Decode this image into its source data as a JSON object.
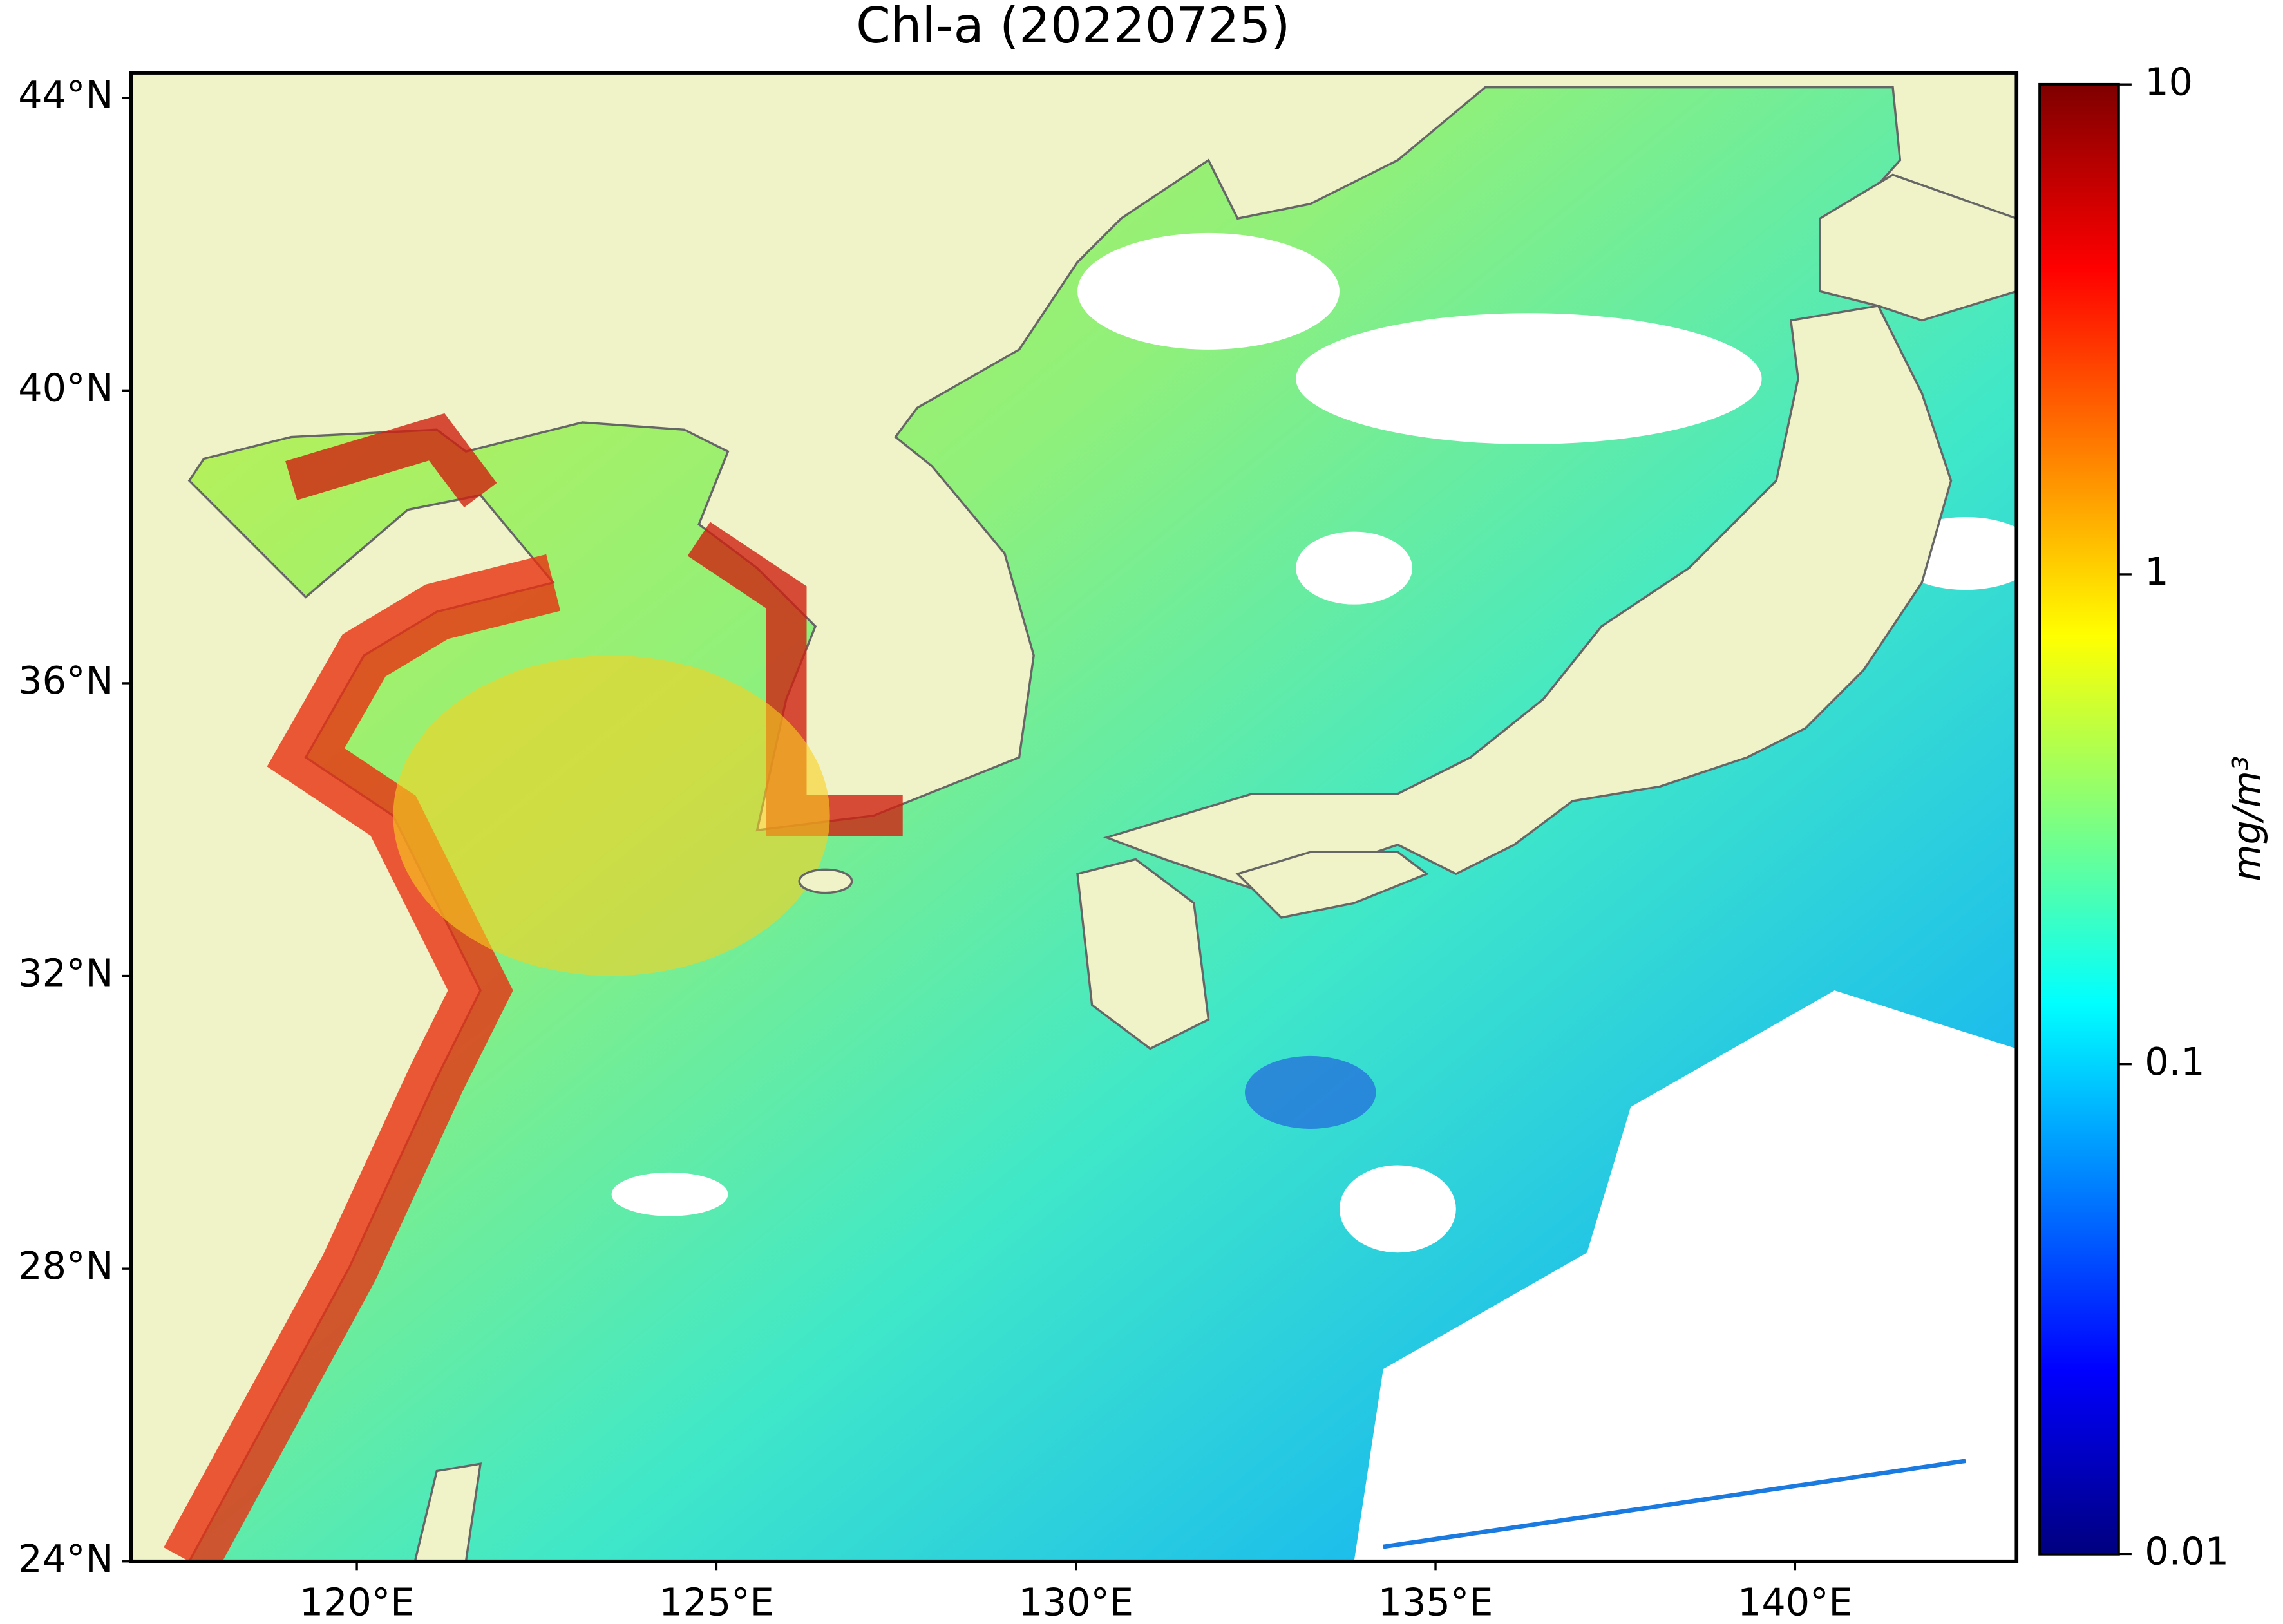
{
  "chart_data": {
    "type": "map",
    "title": "Chl-a (20220725)",
    "xlim": [
      116.86,
      143.08
    ],
    "ylim": [
      24,
      44.34
    ],
    "xticks": [
      {
        "value": 120,
        "label": "120°E"
      },
      {
        "value": 125,
        "label": "125°E"
      },
      {
        "value": 130,
        "label": "130°E"
      },
      {
        "value": 135,
        "label": "135°E"
      },
      {
        "value": 140,
        "label": "140°E"
      }
    ],
    "yticks": [
      {
        "value": 24,
        "label": "24°N"
      },
      {
        "value": 28,
        "label": "28°N"
      },
      {
        "value": 32,
        "label": "32°N"
      },
      {
        "value": 36,
        "label": "36°N"
      },
      {
        "value": 40,
        "label": "40°N"
      },
      {
        "value": 44,
        "label": "44°N"
      }
    ],
    "colorbar": {
      "label": "mg/m³",
      "scale": "log",
      "lim": [
        0.01,
        10
      ],
      "ticks": [
        0.01,
        0.1,
        1,
        10
      ],
      "colors": [
        "#00007f",
        "#0000ff",
        "#007fff",
        "#00ffff",
        "#7fff7f",
        "#ffff00",
        "#ff7f00",
        "#ff0000",
        "#7f0000"
      ]
    }
  }
}
